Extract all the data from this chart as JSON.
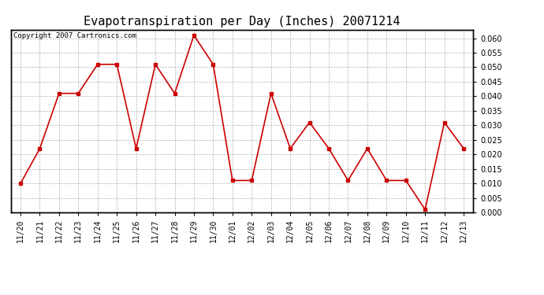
{
  "title": "Evapotranspiration per Day (Inches) 20071214",
  "copyright_text": "Copyright 2007 Cartronics.com",
  "labels": [
    "11/20",
    "11/21",
    "11/22",
    "11/23",
    "11/24",
    "11/25",
    "11/26",
    "11/27",
    "11/28",
    "11/29",
    "11/30",
    "12/01",
    "12/02",
    "12/03",
    "12/04",
    "12/05",
    "12/06",
    "12/07",
    "12/08",
    "12/09",
    "12/10",
    "12/11",
    "12/12",
    "12/13"
  ],
  "values": [
    0.01,
    0.022,
    0.041,
    0.041,
    0.051,
    0.051,
    0.022,
    0.051,
    0.041,
    0.061,
    0.051,
    0.011,
    0.011,
    0.041,
    0.022,
    0.031,
    0.022,
    0.011,
    0.022,
    0.011,
    0.011,
    0.001,
    0.031,
    0.022
  ],
  "line_color": "#cc0000",
  "marker": "s",
  "marker_size": 2.5,
  "line_width": 1.2,
  "bg_color": "#ffffff",
  "plot_bg_color": "#ffffff",
  "grid_color": "#b0b0b0",
  "ylim": [
    0.0,
    0.063
  ],
  "yticks": [
    0.0,
    0.005,
    0.01,
    0.015,
    0.02,
    0.025,
    0.03,
    0.035,
    0.04,
    0.045,
    0.05,
    0.055,
    0.06
  ],
  "title_fontsize": 11,
  "copyright_fontsize": 6.5,
  "tick_fontsize": 7,
  "border_color": "#000000"
}
